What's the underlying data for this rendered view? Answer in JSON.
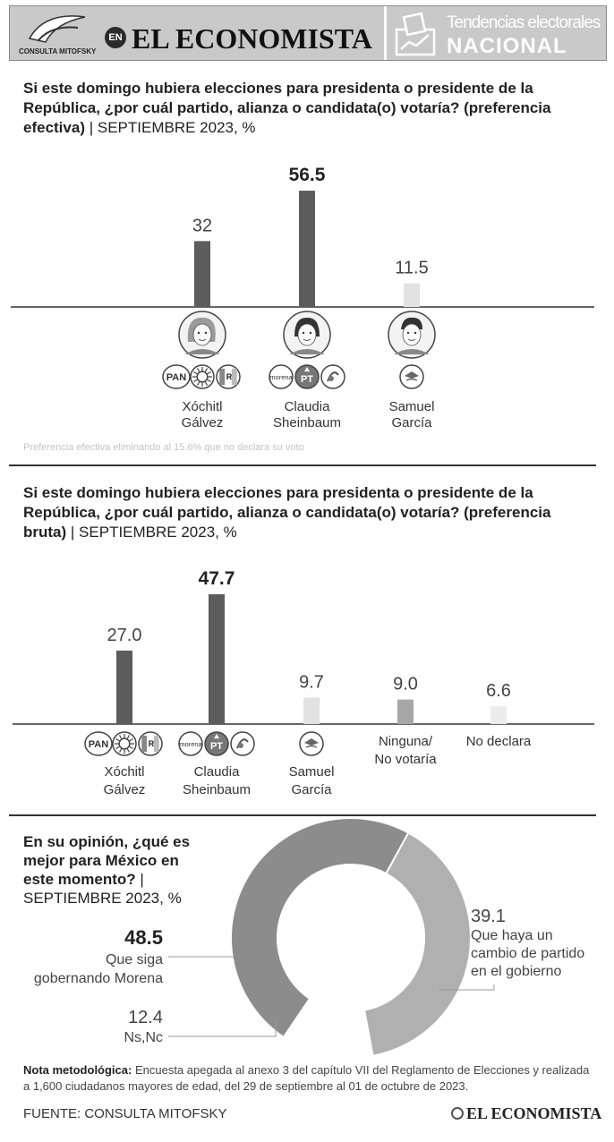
{
  "header": {
    "mitofsky_logo_text": "CONSULTA MITOFSKY",
    "en_badge": "EN",
    "brand": "EL ECONOMISTA",
    "section_line1": "Tendencias electorales",
    "section_line2": "NACIONAL"
  },
  "colors": {
    "dark_bar": "#5c5c5c",
    "light_bar": "#e2e2e2",
    "mid_bar": "#a7a7a7",
    "lightest_bar": "#ececec",
    "donut_main": "#8c8c8c",
    "donut_light": "#b0b0b0",
    "donut_gap": "#ffffff"
  },
  "section1": {
    "question": "Si este domingo hubiera elecciones para presidenta o presidente de la República, ¿por cuál partido, alianza o candidata(o) votaría? (preferencia efectiva)",
    "subtitle": "SEPTIEMBRE 2023, %",
    "note": "Preferencia efectiva eliminando al 15.6% que no declara su voto"
  },
  "section2": {
    "question": "Si este domingo hubiera elecciones para presidenta o presidente de la República, ¿por cuál partido, alianza o candidata(o) votaría? (preferencia bruta)",
    "subtitle": "SEPTIEMBRE 2023, %"
  },
  "section3": {
    "question": "En su opinión, ¿qué es mejor para México en este momento?",
    "subtitle": "SEPTIEMBRE 2023, %"
  },
  "party_logos": {
    "pan": "PAN",
    "prd": "PRD",
    "pri": "PRI",
    "morena": "morena",
    "pt": "PT",
    "pvem": "PVEM",
    "mc": "MC"
  },
  "chart_data": [
    {
      "type": "bar",
      "title": "Preferencia efectiva",
      "categories": [
        "Xóchitl Gálvez",
        "Claudia Sheinbaum",
        "Samuel García"
      ],
      "label_lines": [
        [
          "Xóchitl",
          "Gálvez"
        ],
        [
          "Claudia",
          "Sheinbaum"
        ],
        [
          "Samuel",
          "García"
        ]
      ],
      "values": [
        32,
        56.5,
        11.5
      ],
      "value_labels": [
        "32",
        "56.5",
        "11.5"
      ],
      "bold_index": 1,
      "bar_colors": [
        "dark_bar",
        "dark_bar",
        "light_bar"
      ],
      "parties": [
        [
          "pan",
          "prd",
          "pri"
        ],
        [
          "morena",
          "pt",
          "pvem"
        ],
        [
          "mc"
        ]
      ],
      "ylim": [
        0,
        60
      ]
    },
    {
      "type": "bar",
      "title": "Preferencia bruta",
      "categories": [
        "Xóchitl Gálvez",
        "Claudia Sheinbaum",
        "Samuel García",
        "Ninguna/ No votaría",
        "No declara"
      ],
      "label_lines": [
        [
          "Xóchitl",
          "Gálvez"
        ],
        [
          "Claudia",
          "Sheinbaum"
        ],
        [
          "Samuel",
          "García"
        ],
        [
          "Ninguna/",
          "No votaría"
        ],
        [
          "No declara"
        ]
      ],
      "values": [
        27.0,
        47.7,
        9.7,
        9.0,
        6.6
      ],
      "value_labels": [
        "27.0",
        "47.7",
        "9.7",
        "9.0",
        "6.6"
      ],
      "bold_index": 1,
      "bar_colors": [
        "dark_bar",
        "dark_bar",
        "light_bar",
        "mid_bar",
        "lightest_bar"
      ],
      "parties": [
        [
          "pan",
          "prd",
          "pri"
        ],
        [
          "morena",
          "pt",
          "pvem"
        ],
        [
          "mc"
        ],
        [],
        []
      ],
      "ylim": [
        0,
        50
      ]
    },
    {
      "type": "pie",
      "title": "¿Qué es mejor para México en este momento?",
      "categories": [
        "Que siga gobernando Morena",
        "Que haya un cambio de partido en el gobierno",
        "Ns,Nc"
      ],
      "values": [
        48.5,
        39.1,
        12.4
      ],
      "value_labels": [
        "48.5",
        "39.1",
        "12.4"
      ],
      "label_lines": [
        [
          "Que siga",
          "gobernando Morena"
        ],
        [
          "Que haya un",
          "cambio de partido",
          "en el gobierno"
        ],
        [
          "Ns,Nc"
        ]
      ]
    }
  ],
  "footer": {
    "note_label": "Nota metodológica:",
    "note_text": "Encuesta apegada al anexo 3 del capítulo VII del Reglamento de Elecciones y realizada a 1,600 ciudadanos mayores de edad, del 29 de septiembre al 01 de octubre de 2023.",
    "source": "FUENTE: CONSULTA MITOFSKY",
    "brand": "EL ECONOMISTA"
  }
}
